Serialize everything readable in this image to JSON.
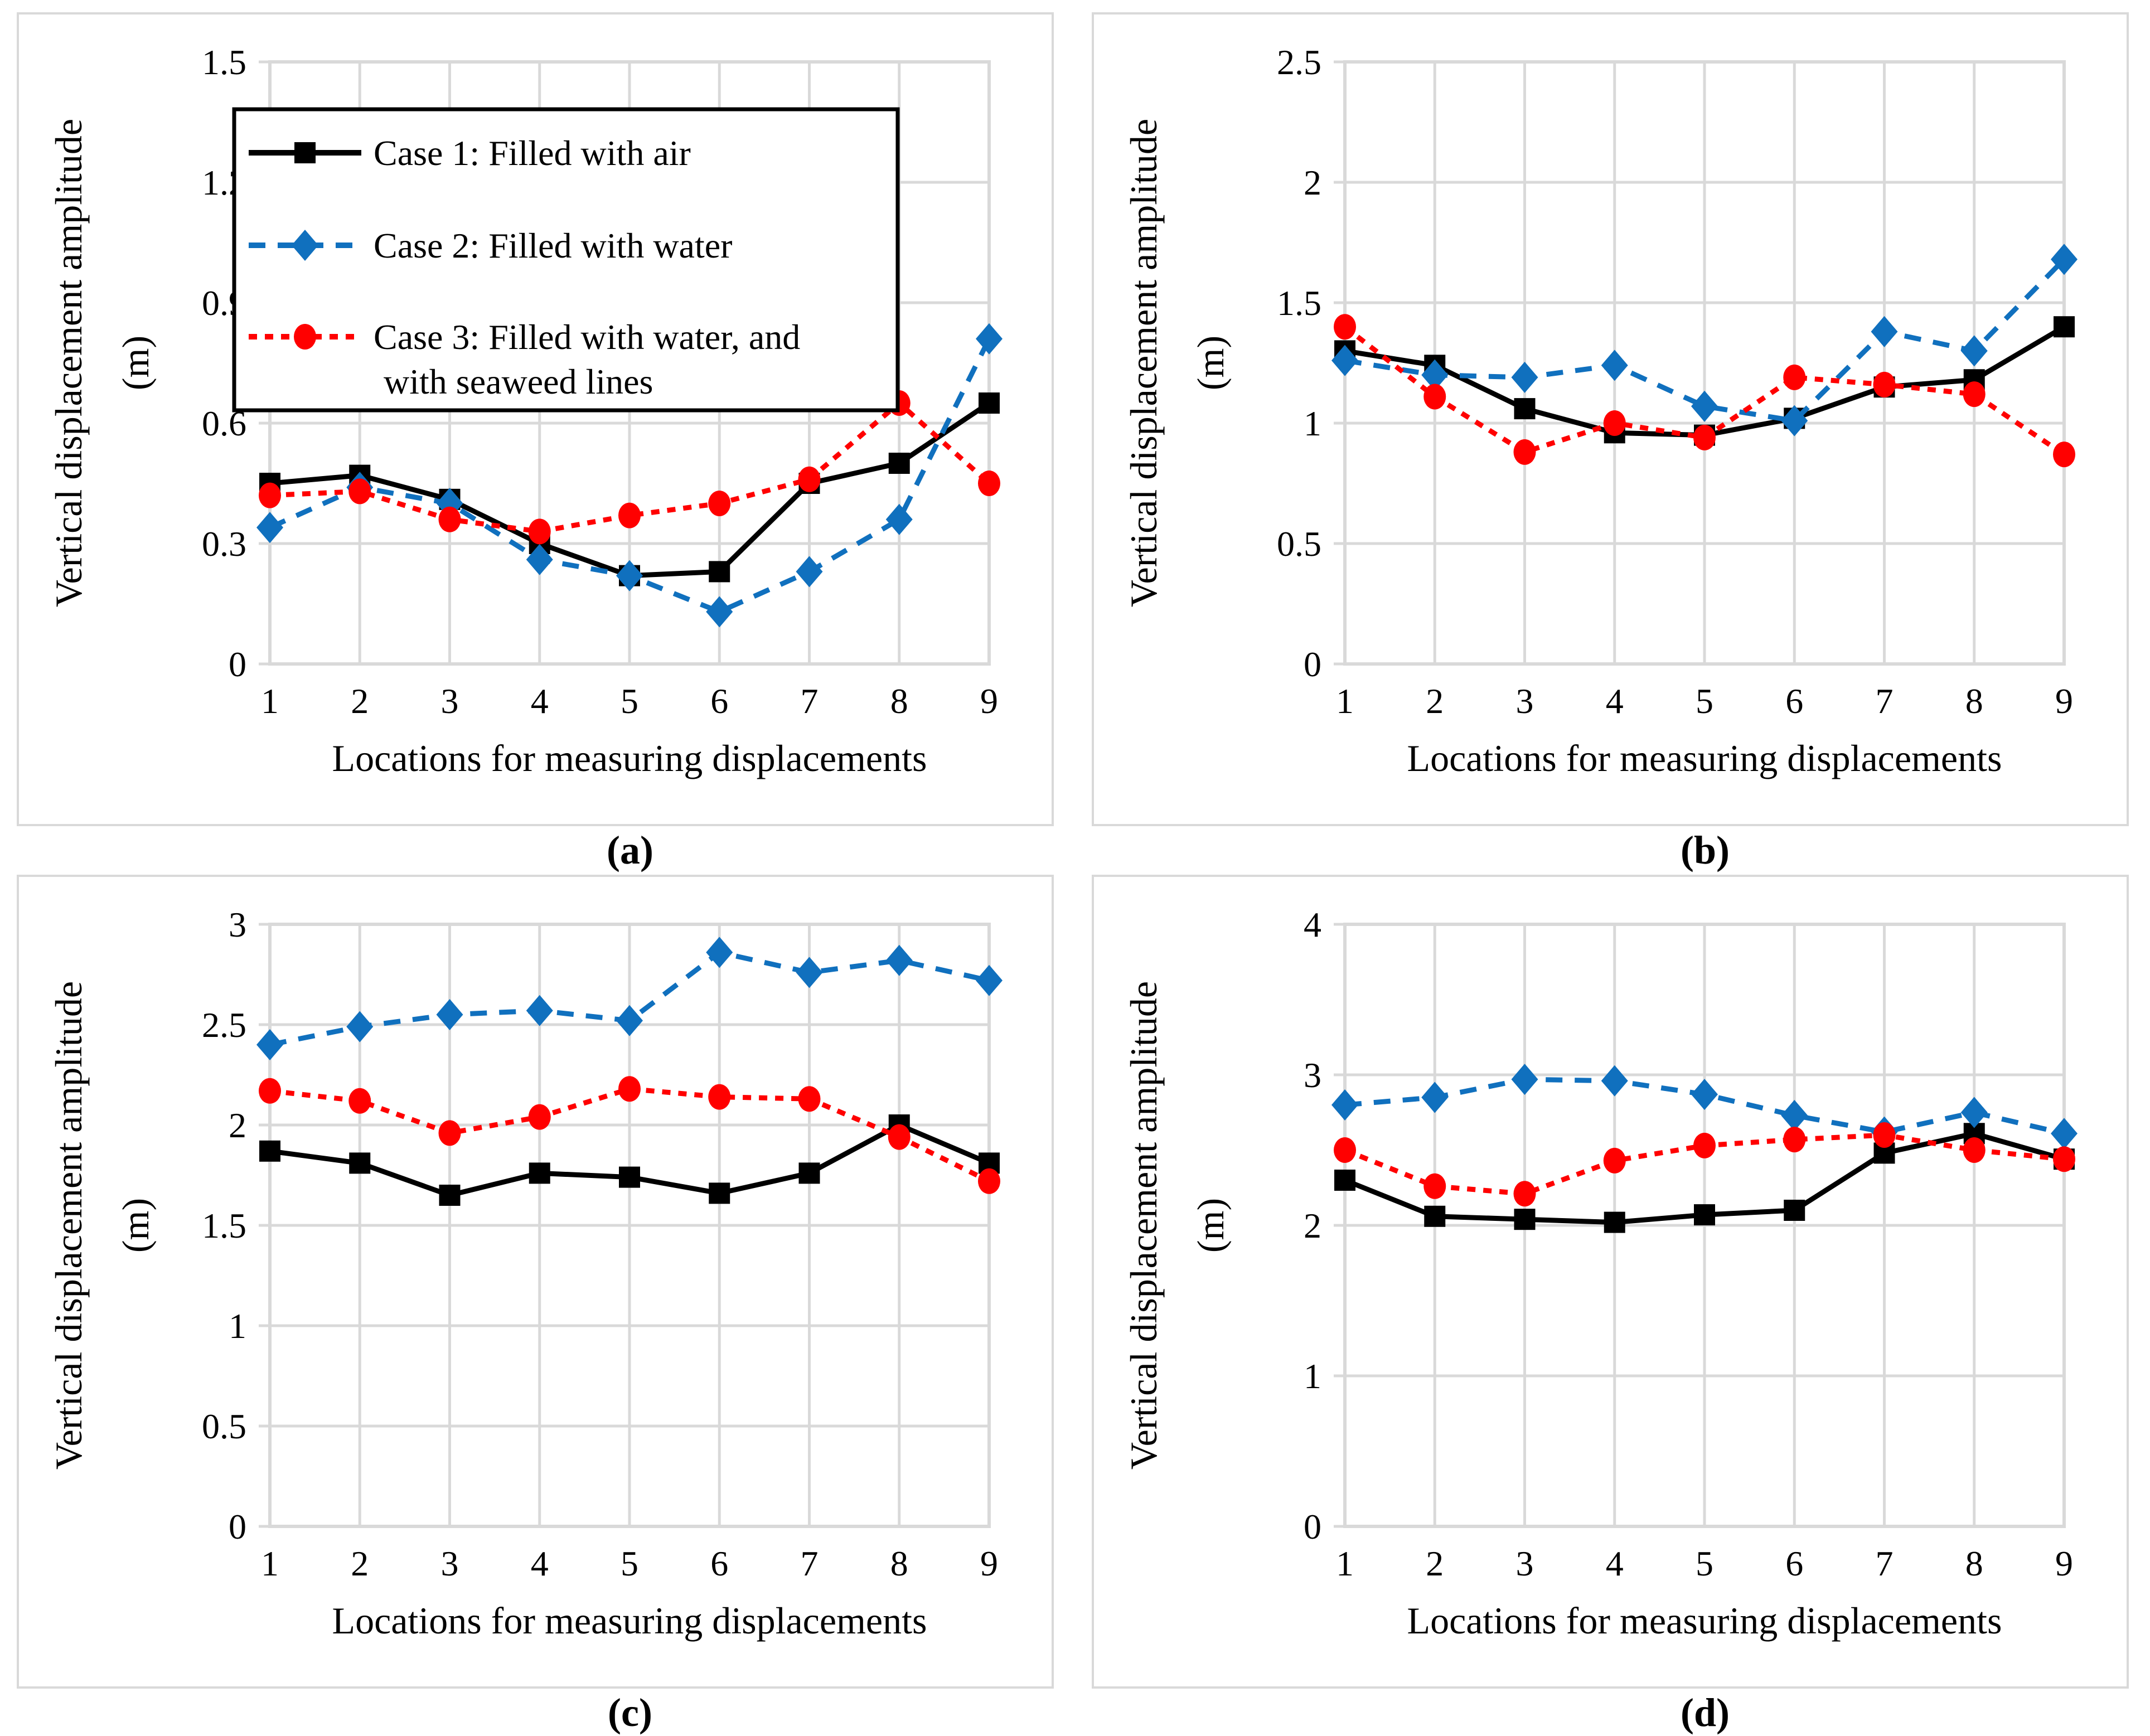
{
  "figure": {
    "background": "#ffffff",
    "panel_border_color": "#d9d9d9",
    "gridline_color": "#d9d9d9",
    "axis_color": "#d9d9d9"
  },
  "axis_titles": {
    "x_title": "Locations for measuring displacements",
    "y_title_line1": "Vertical displacement amplitude",
    "y_title_line2": "(m)"
  },
  "legend": {
    "border_color": "#000000",
    "items": [
      {
        "series": "case1",
        "label": "Case 1: Filled with air",
        "label_line2": ""
      },
      {
        "series": "case2",
        "label": "Case 2: Filled with water",
        "label_line2": ""
      },
      {
        "series": "case3",
        "label": "Case 3: Filled with water, and",
        "label_line2": "with seaweed lines"
      }
    ]
  },
  "series_styles": {
    "case1": {
      "color": "#000000",
      "dash": "",
      "marker": "square"
    },
    "case2": {
      "color": "#1070BE",
      "dash": "30 22",
      "marker": "diamond"
    },
    "case3": {
      "color": "#FF0000",
      "dash": "15 14",
      "marker": "circle"
    }
  },
  "chart_data": [
    {
      "id": "a",
      "sublabel": "(a)",
      "type": "line",
      "legend": true,
      "x": [
        1,
        2,
        3,
        4,
        5,
        6,
        7,
        8,
        9
      ],
      "xlabel": "Locations for measuring displacements",
      "ylabel": "Vertical displacement amplitude (m)",
      "ylim": [
        0,
        1.5
      ],
      "ytick_labels": [
        "0",
        "0.3",
        "0.6",
        "0.9",
        "1.2",
        "1.5"
      ],
      "series": [
        {
          "name": "Case 1: Filled with air",
          "key": "case1",
          "values": [
            0.45,
            0.47,
            0.41,
            0.3,
            0.22,
            0.23,
            0.45,
            0.5,
            0.65
          ]
        },
        {
          "name": "Case 2: Filled with water",
          "key": "case2",
          "values": [
            0.34,
            0.44,
            0.4,
            0.26,
            0.22,
            0.13,
            0.23,
            0.36,
            0.81
          ]
        },
        {
          "name": "Case 3: Filled with water, and with seaweed lines",
          "key": "case3",
          "values": [
            0.42,
            0.43,
            0.36,
            0.33,
            0.37,
            0.4,
            0.46,
            0.65,
            0.45
          ]
        }
      ]
    },
    {
      "id": "b",
      "sublabel": "(b)",
      "type": "line",
      "legend": false,
      "x": [
        1,
        2,
        3,
        4,
        5,
        6,
        7,
        8,
        9
      ],
      "xlabel": "Locations for measuring displacements",
      "ylabel": "Vertical displacement amplitude (m)",
      "ylim": [
        0,
        2.5
      ],
      "ytick_labels": [
        "0",
        "0.5",
        "1",
        "1.5",
        "2",
        "2.5"
      ],
      "series": [
        {
          "name": "Case 1: Filled with air",
          "key": "case1",
          "values": [
            1.3,
            1.24,
            1.06,
            0.96,
            0.95,
            1.02,
            1.15,
            1.18,
            1.4
          ]
        },
        {
          "name": "Case 2: Filled with water",
          "key": "case2",
          "values": [
            1.26,
            1.2,
            1.19,
            1.24,
            1.07,
            1.01,
            1.38,
            1.3,
            1.68
          ]
        },
        {
          "name": "Case 3: Filled with water, and with seaweed lines",
          "key": "case3",
          "values": [
            1.4,
            1.11,
            0.88,
            1.0,
            0.94,
            1.19,
            1.16,
            1.12,
            0.87
          ]
        }
      ]
    },
    {
      "id": "c",
      "sublabel": "(c)",
      "type": "line",
      "legend": false,
      "x": [
        1,
        2,
        3,
        4,
        5,
        6,
        7,
        8,
        9
      ],
      "xlabel": "Locations for measuring displacements",
      "ylabel": "Vertical displacement amplitude (m)",
      "ylim": [
        0,
        3
      ],
      "ytick_labels": [
        "0",
        "0.5",
        "1",
        "1.5",
        "2",
        "2.5",
        "3"
      ],
      "series": [
        {
          "name": "Case 1: Filled with air",
          "key": "case1",
          "values": [
            1.87,
            1.81,
            1.65,
            1.76,
            1.74,
            1.66,
            1.76,
            2.0,
            1.81
          ]
        },
        {
          "name": "Case 2: Filled with water",
          "key": "case2",
          "values": [
            2.4,
            2.49,
            2.55,
            2.57,
            2.52,
            2.86,
            2.76,
            2.82,
            2.72
          ]
        },
        {
          "name": "Case 3: Filled with water, and with seaweed lines",
          "key": "case3",
          "values": [
            2.17,
            2.12,
            1.96,
            2.04,
            2.18,
            2.14,
            2.13,
            1.94,
            1.72
          ]
        }
      ]
    },
    {
      "id": "d",
      "sublabel": "(d)",
      "type": "line",
      "legend": false,
      "x": [
        1,
        2,
        3,
        4,
        5,
        6,
        7,
        8,
        9
      ],
      "xlabel": "Locations for measuring displacements",
      "ylabel": "Vertical displacement amplitude (m)",
      "ylim": [
        0,
        4
      ],
      "ytick_labels": [
        "0",
        "1",
        "2",
        "3",
        "4"
      ],
      "series": [
        {
          "name": "Case 1: Filled with air",
          "key": "case1",
          "values": [
            2.3,
            2.06,
            2.04,
            2.02,
            2.07,
            2.1,
            2.48,
            2.61,
            2.44
          ]
        },
        {
          "name": "Case 2: Filled with water",
          "key": "case2",
          "values": [
            2.8,
            2.85,
            2.97,
            2.96,
            2.87,
            2.73,
            2.62,
            2.75,
            2.61
          ]
        },
        {
          "name": "Case 3: Filled with water, and with seaweed lines",
          "key": "case3",
          "values": [
            2.5,
            2.26,
            2.21,
            2.43,
            2.53,
            2.57,
            2.6,
            2.5,
            2.44
          ]
        }
      ]
    }
  ]
}
